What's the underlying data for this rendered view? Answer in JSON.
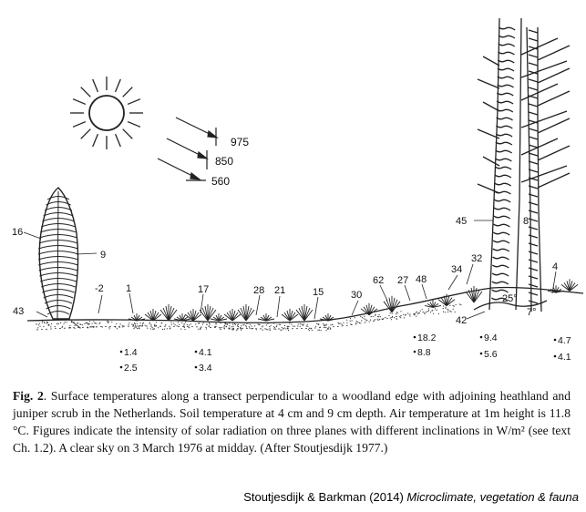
{
  "radiation": [
    "975",
    "850",
    "560"
  ],
  "surface_labels": [
    {
      "key": "juniper-left",
      "text": "16"
    },
    {
      "key": "juniper-right",
      "text": "9"
    },
    {
      "key": "ground-far-left",
      "text": "43"
    },
    {
      "key": "heath-a",
      "text": "-2"
    },
    {
      "key": "heath-b",
      "text": "1"
    },
    {
      "key": "heath-c",
      "text": "17"
    },
    {
      "key": "heath-d",
      "text": "28"
    },
    {
      "key": "heath-e",
      "text": "21"
    },
    {
      "key": "heath-f",
      "text": "15"
    },
    {
      "key": "slope-a",
      "text": "30"
    },
    {
      "key": "slope-b",
      "text": "62"
    },
    {
      "key": "slope-c",
      "text": "27"
    },
    {
      "key": "slope-d",
      "text": "48"
    },
    {
      "key": "edge-a",
      "text": "34"
    },
    {
      "key": "edge-b",
      "text": "32"
    },
    {
      "key": "trunk-left",
      "text": "45"
    },
    {
      "key": "trunk-right",
      "text": "8"
    },
    {
      "key": "edge-far-right",
      "text": "4"
    },
    {
      "key": "root-a",
      "text": "42"
    },
    {
      "key": "root-b",
      "text": "25°"
    },
    {
      "key": "root-c",
      "text": "7°"
    }
  ],
  "soil_temps": [
    {
      "upper": "1.4",
      "lower": "2.5"
    },
    {
      "upper": "4.1",
      "lower": "3.4"
    },
    {
      "upper": "18.2",
      "lower": "8.8"
    },
    {
      "upper": "9.4",
      "lower": "5.6"
    },
    {
      "upper": "4.7",
      "lower": "4.1"
    }
  ],
  "caption": {
    "fig_label": "Fig. 2",
    "text": ". Surface temperatures along a transect perpendicular to a woodland edge with adjoining heathland and juniper scrub in the Netherlands.  Soil temperature at 4 cm and 9 cm depth.  Air temperature at 1m height is 11.8 °C.  Figures indicate the intensity of solar radiation on three planes with different inclinations in W/m² (see text Ch. 1.2). A clear sky on 3 March 1976 at midday. (After Stoutjesdijk 1977.)"
  },
  "credit": {
    "authors": "Stoutjesdijk & Barkman (2014) ",
    "title": "Microclimate, vegetation & fauna"
  }
}
